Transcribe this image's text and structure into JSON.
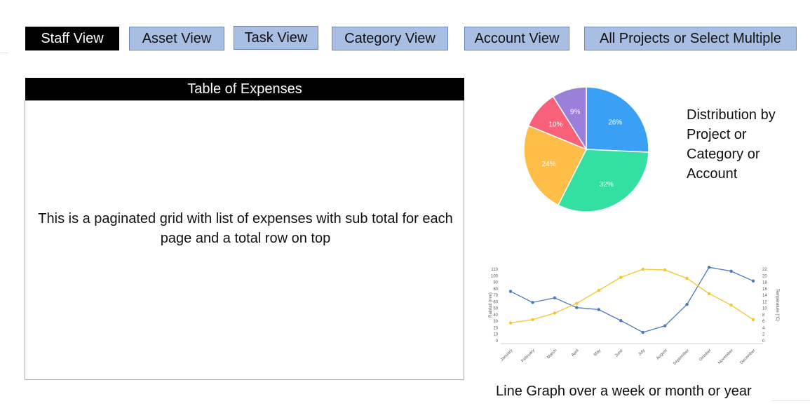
{
  "tabs": [
    {
      "label": "Staff View",
      "active": true
    },
    {
      "label": "Asset View",
      "active": false
    },
    {
      "label": "Task View",
      "active": false
    },
    {
      "label": "Category View",
      "active": false
    },
    {
      "label": "Account View",
      "active": false
    },
    {
      "label": "All Projects or Select Multiple",
      "active": false
    }
  ],
  "expenses": {
    "title": "Table of Expenses",
    "description": "This is a paginated grid with list of expenses with sub total for each page and a total row on top"
  },
  "pie": {
    "caption": "Distribution by\nProject or\nCategory or\nAccount"
  },
  "line": {
    "caption": "Line Graph over a week or month or year"
  },
  "chart_data": [
    {
      "type": "pie",
      "labels": [
        "26%",
        "32%",
        "24%",
        "10%",
        "9%"
      ],
      "values": [
        26,
        32,
        24,
        10,
        9
      ],
      "colors": [
        "#3aa0f5",
        "#34e0a1",
        "#fdbd47",
        "#f7617a",
        "#9a80d8"
      ]
    },
    {
      "type": "line",
      "categories": [
        "January",
        "February",
        "March",
        "April",
        "May",
        "June",
        "July",
        "August",
        "September",
        "October",
        "November",
        "December"
      ],
      "series": [
        {
          "name": "Rainfall (mm)",
          "axis": "left",
          "color": "#4a78c2",
          "values": [
            76,
            59,
            66,
            51,
            48,
            31,
            13,
            23,
            56,
            113,
            107,
            92
          ]
        },
        {
          "name": "Temperature (°C)",
          "axis": "right",
          "color": "#f4c52a",
          "values": [
            5.5,
            6.5,
            8.5,
            11.5,
            15.5,
            19.5,
            22,
            21.8,
            19.2,
            14.5,
            11,
            6.5
          ]
        }
      ],
      "ylabel_left": "Rainfall (mm)",
      "ylabel_right": "Temperature (°C)",
      "ylim_left": [
        0,
        110
      ],
      "ylim_right": [
        0,
        22
      ],
      "yticks_left": [
        "0",
        "10",
        "20",
        "30",
        "40",
        "50",
        "60",
        "70",
        "80",
        "90",
        "100",
        "110"
      ],
      "yticks_right": [
        "0",
        "2",
        "4",
        "6",
        "8",
        "10",
        "12",
        "14",
        "16",
        "18",
        "20",
        "22"
      ]
    }
  ]
}
